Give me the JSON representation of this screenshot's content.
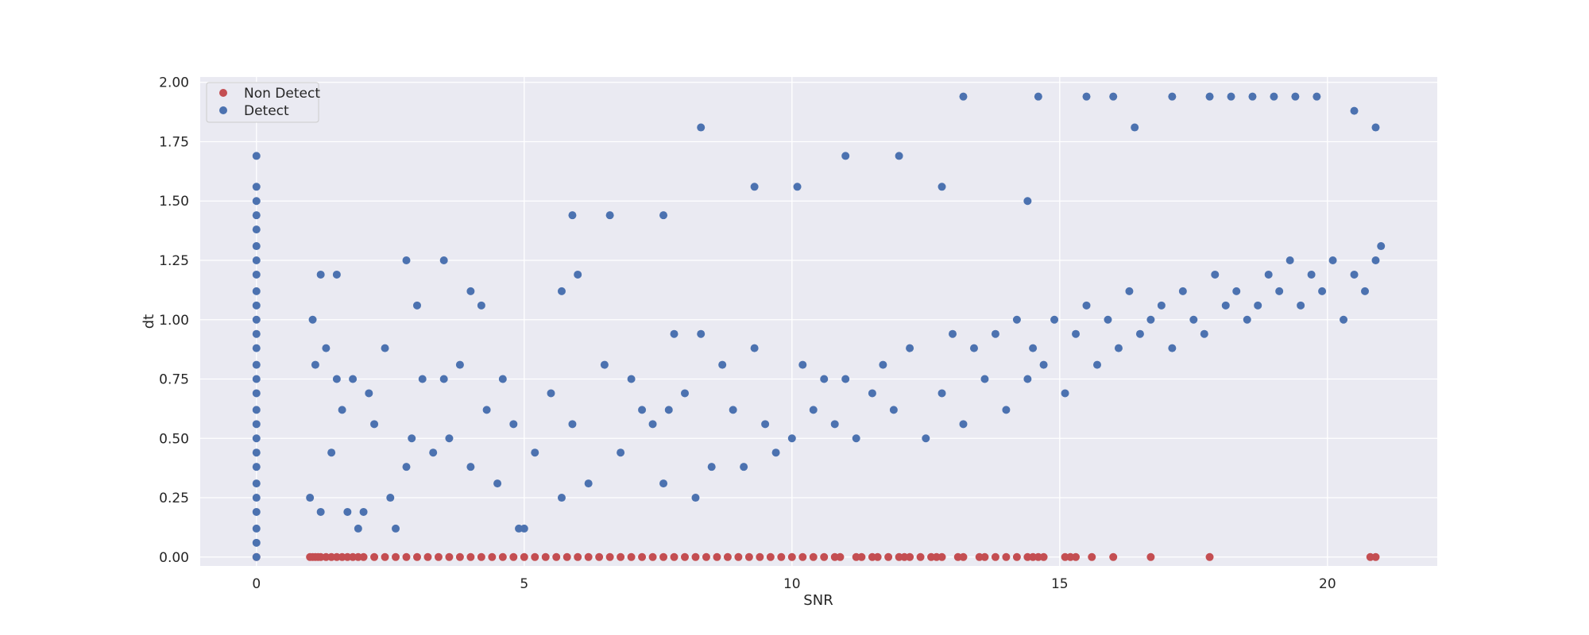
{
  "chart_data": {
    "type": "scatter",
    "title": "",
    "xlabel": "SNR",
    "ylabel": "dt",
    "xlim": [
      -1.05,
      22.05
    ],
    "ylim": [
      -0.0375,
      2.0225
    ],
    "xticks": [
      0,
      5,
      10,
      15,
      20
    ],
    "yticks": [
      0.0,
      0.25,
      0.5,
      0.75,
      1.0,
      1.25,
      1.5,
      1.75,
      2.0
    ],
    "ytick_labels": [
      "0.00",
      "0.25",
      "0.50",
      "0.75",
      "1.00",
      "1.25",
      "1.50",
      "1.75",
      "2.00"
    ],
    "grid": true,
    "legend_position": "top-left",
    "background": "#eaeaf2",
    "series": [
      {
        "name": "Non Detect",
        "color": "#c44e52",
        "x": [
          0,
          1.0,
          1.05,
          1.1,
          1.15,
          1.2,
          1.3,
          1.4,
          1.5,
          1.6,
          1.7,
          1.8,
          1.9,
          2.0,
          2.2,
          2.4,
          2.6,
          2.8,
          3.0,
          3.2,
          3.4,
          3.6,
          3.8,
          4.0,
          4.2,
          4.4,
          4.6,
          4.8,
          5.0,
          5.2,
          5.4,
          5.6,
          5.8,
          6.0,
          6.2,
          6.4,
          6.6,
          6.8,
          7.0,
          7.2,
          7.4,
          7.6,
          7.8,
          8.0,
          8.2,
          8.4,
          8.6,
          8.8,
          9.0,
          9.2,
          9.4,
          9.6,
          9.8,
          10.0,
          10.2,
          10.4,
          10.6,
          10.8,
          10.9,
          11.2,
          11.3,
          11.5,
          11.6,
          11.8,
          12.0,
          12.1,
          12.2,
          12.4,
          12.6,
          12.7,
          12.8,
          13.1,
          13.2,
          13.5,
          13.6,
          13.8,
          14.0,
          14.2,
          14.4,
          14.5,
          14.6,
          14.7,
          15.1,
          15.2,
          15.3,
          15.6,
          16.0,
          16.7,
          17.8,
          20.8,
          20.9
        ],
        "y": [
          0.0,
          0.0,
          0.0,
          0.0,
          0.0,
          0.0,
          0.0,
          0.0,
          0.0,
          0.0,
          0.0,
          0.0,
          0.0,
          0.0,
          0.0,
          0.0,
          0.0,
          0.0,
          0.0,
          0.0,
          0.0,
          0.0,
          0.0,
          0.0,
          0.0,
          0.0,
          0.0,
          0.0,
          0.0,
          0.0,
          0.0,
          0.0,
          0.0,
          0.0,
          0.0,
          0.0,
          0.0,
          0.0,
          0.0,
          0.0,
          0.0,
          0.0,
          0.0,
          0.0,
          0.0,
          0.0,
          0.0,
          0.0,
          0.0,
          0.0,
          0.0,
          0.0,
          0.0,
          0.0,
          0.0,
          0.0,
          0.0,
          0.0,
          0.0,
          0.0,
          0.0,
          0.0,
          0.0,
          0.0,
          0.0,
          0.0,
          0.0,
          0.0,
          0.0,
          0.0,
          0.0,
          0.0,
          0.0,
          0.0,
          0.0,
          0.0,
          0.0,
          0.0,
          0.0,
          0.0,
          0.0,
          0.0,
          0.0,
          0.0,
          0.0,
          0.0,
          0.0,
          0.0,
          0.0,
          0.0,
          0.0
        ]
      },
      {
        "name": "Detect",
        "color": "#4c72b0",
        "x": [
          0,
          0,
          0,
          0,
          0,
          0,
          0,
          0,
          0,
          0,
          0,
          0,
          0,
          0,
          0,
          0,
          0,
          0,
          0,
          0,
          0,
          0,
          0,
          0,
          0,
          0,
          0,
          1.0,
          1.05,
          1.1,
          1.2,
          1.3,
          1.4,
          1.5,
          1.6,
          1.7,
          1.8,
          1.9,
          2.0,
          2.1,
          2.2,
          2.4,
          2.5,
          2.6,
          2.8,
          2.9,
          3.0,
          3.1,
          3.3,
          3.5,
          3.6,
          3.8,
          4.0,
          4.2,
          4.3,
          4.5,
          4.6,
          4.8,
          4.9,
          5.0,
          5.2,
          5.5,
          5.7,
          5.9,
          6.0,
          6.2,
          6.5,
          6.8,
          7.0,
          7.2,
          7.4,
          7.6,
          7.7,
          7.8,
          8.0,
          8.2,
          8.3,
          8.5,
          8.7,
          8.9,
          9.1,
          9.3,
          9.5,
          9.7,
          10.0,
          10.2,
          10.4,
          10.6,
          10.8,
          11.0,
          11.2,
          11.5,
          11.7,
          11.9,
          12.2,
          12.5,
          12.8,
          13.0,
          13.2,
          13.4,
          13.6,
          13.8,
          14.0,
          14.2,
          14.4,
          14.5,
          14.7,
          14.9,
          15.1,
          15.3,
          15.5,
          15.7,
          15.9,
          16.1,
          16.3,
          16.5,
          16.7,
          16.9,
          17.1,
          17.3,
          17.5,
          17.7,
          17.9,
          18.1,
          18.3,
          18.5,
          18.7,
          18.9,
          19.1,
          19.3,
          19.5,
          19.7,
          19.9,
          20.1,
          20.3,
          20.5,
          20.7,
          20.9,
          21.0,
          1.2,
          1.5,
          2.8,
          3.5,
          4.0,
          5.7,
          5.9,
          6.6,
          7.6,
          8.3,
          9.3,
          10.1,
          11.0,
          12.0,
          12.8,
          13.2,
          14.4,
          14.6,
          15.5,
          16.0,
          16.4,
          17.1,
          17.8,
          18.2,
          18.6,
          19.0,
          19.4,
          19.8,
          20.5,
          20.9
        ],
        "y": [
          0.0,
          0.06,
          0.12,
          0.19,
          0.25,
          0.31,
          0.38,
          0.44,
          0.5,
          0.56,
          0.62,
          0.69,
          0.75,
          0.81,
          0.88,
          0.94,
          1.0,
          1.06,
          1.12,
          1.19,
          1.25,
          1.31,
          1.38,
          1.44,
          1.5,
          1.56,
          1.69,
          0.25,
          1.0,
          0.81,
          0.19,
          0.88,
          0.44,
          0.75,
          0.62,
          0.19,
          0.75,
          0.12,
          0.19,
          0.69,
          0.56,
          0.88,
          0.25,
          0.12,
          0.38,
          0.5,
          1.06,
          0.75,
          0.44,
          0.75,
          0.5,
          0.81,
          0.38,
          1.06,
          0.62,
          0.31,
          0.75,
          0.56,
          0.12,
          0.12,
          0.44,
          0.69,
          0.25,
          0.56,
          1.19,
          0.31,
          0.81,
          0.44,
          0.75,
          0.62,
          0.56,
          0.31,
          0.62,
          0.94,
          0.69,
          0.25,
          0.94,
          0.38,
          0.81,
          0.62,
          0.38,
          0.88,
          0.56,
          0.44,
          0.5,
          0.81,
          0.62,
          0.75,
          0.56,
          0.75,
          0.5,
          0.69,
          0.81,
          0.62,
          0.88,
          0.5,
          0.69,
          0.94,
          0.56,
          0.88,
          0.75,
          0.94,
          0.62,
          1.0,
          0.75,
          0.88,
          0.81,
          1.0,
          0.69,
          0.94,
          1.06,
          0.81,
          1.0,
          0.88,
          1.12,
          0.94,
          1.0,
          1.06,
          0.88,
          1.12,
          1.0,
          0.94,
          1.19,
          1.06,
          1.12,
          1.0,
          1.06,
          1.19,
          1.12,
          1.25,
          1.06,
          1.19,
          1.12,
          1.25,
          1.0,
          1.19,
          1.12,
          1.25,
          1.31,
          1.19,
          1.19,
          1.25,
          1.25,
          1.12,
          1.12,
          1.44,
          1.44,
          1.44,
          1.81,
          1.56,
          1.56,
          1.69,
          1.69,
          1.56,
          1.94,
          1.5,
          1.94,
          1.94,
          1.94,
          1.81,
          1.94,
          1.94,
          1.94,
          1.94,
          1.94,
          1.94,
          1.94,
          1.88,
          1.81
        ]
      }
    ]
  }
}
